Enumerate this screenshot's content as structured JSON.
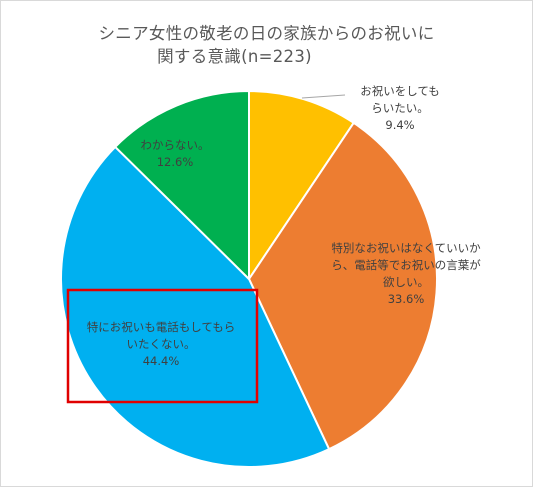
{
  "chart_data": {
    "type": "pie",
    "title_lines": [
      "シニア女性の敬老の日の家族からのお祝いに",
      "関する意識(n=223)"
    ],
    "slices": [
      {
        "label_lines": [
          "お祝いをしても",
          "らいたい。"
        ],
        "value": 9.4,
        "value_label": "9.4%",
        "color": "#FFC000"
      },
      {
        "label_lines": [
          "特別なお祝いはなくていいか",
          "ら、電話等でお祝いの言葉が",
          "欲しい。"
        ],
        "value": 33.6,
        "value_label": "33.6%",
        "color": "#ED7D31"
      },
      {
        "label_lines": [
          "特にお祝いも電話もしてもら",
          "いたくない。"
        ],
        "value": 44.4,
        "value_label": "44.4%",
        "color": "#00B0F0"
      },
      {
        "label_lines": [
          "わからない。"
        ],
        "value": 12.6,
        "value_label": "12.6%",
        "color": "#00B050"
      }
    ],
    "highlight_color": "#E00000",
    "legend": "none"
  }
}
